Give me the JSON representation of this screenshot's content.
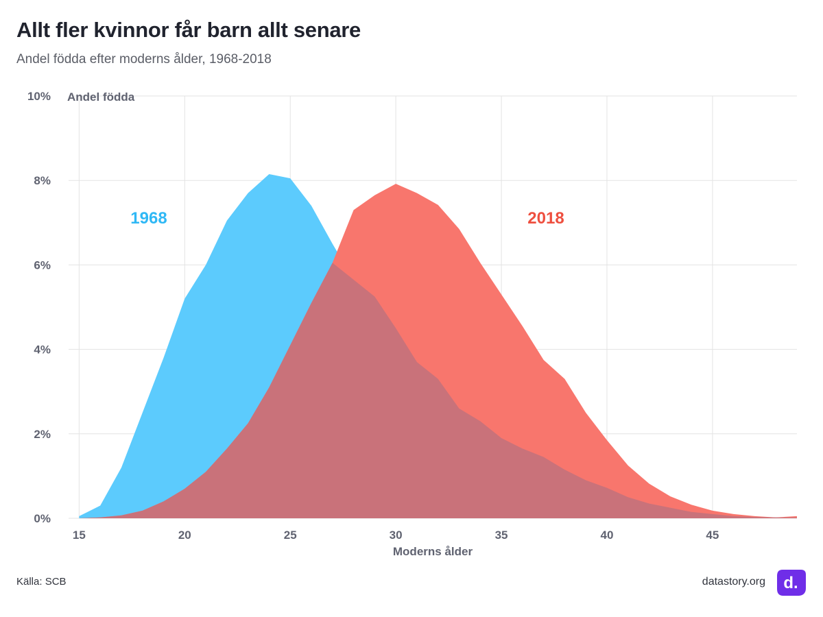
{
  "title": "Allt fler kvinnor får barn allt senare",
  "subtitle": "Andel födda efter moderns ålder, 1968-2018",
  "source": "Källa: SCB",
  "site": "datastory.org",
  "logo_text": "d.",
  "colors": {
    "series_1968": "#5ccbfd",
    "series_2018": "#f8766d",
    "overlap": "#c9727a",
    "logo": "#6f2ee8",
    "grid": "#e3e3e3"
  },
  "chart_data": {
    "type": "area",
    "title": "Allt fler kvinnor får barn allt senare",
    "subtitle": "Andel födda efter moderns ålder, 1968-2018",
    "xlabel": "Moderns ålder",
    "ylabel": "Andel födda",
    "xlim": [
      14.5,
      49
    ],
    "ylim": [
      0,
      10
    ],
    "x_ticks": [
      15,
      20,
      25,
      30,
      35,
      40,
      45
    ],
    "y_ticks": [
      "0%",
      "2%",
      "4%",
      "6%",
      "8%",
      "10%"
    ],
    "grid": true,
    "legend": "inline labels",
    "x": [
      15,
      16,
      17,
      18,
      19,
      20,
      21,
      22,
      23,
      24,
      25,
      26,
      27,
      28,
      29,
      30,
      31,
      32,
      33,
      34,
      35,
      36,
      37,
      38,
      39,
      40,
      41,
      42,
      43,
      44,
      45,
      46,
      47,
      48,
      49
    ],
    "series": [
      {
        "name": "1968",
        "values": [
          0.05,
          0.3,
          1.2,
          2.5,
          3.8,
          5.2,
          6.0,
          7.05,
          7.7,
          8.15,
          8.05,
          7.4,
          6.5,
          5.65,
          5.25,
          4.5,
          3.7,
          3.3,
          2.6,
          2.3,
          1.9,
          1.65,
          1.45,
          1.15,
          0.9,
          0.72,
          0.5,
          0.35,
          0.25,
          0.15,
          0.1,
          0.05,
          0.03,
          0.02,
          0.02
        ]
      },
      {
        "name": "2018",
        "values": [
          0.0,
          0.02,
          0.07,
          0.18,
          0.4,
          0.7,
          1.1,
          1.65,
          2.25,
          3.1,
          4.1,
          5.1,
          6.05,
          7.3,
          7.65,
          7.92,
          7.7,
          7.42,
          6.85,
          6.05,
          5.3,
          4.55,
          3.75,
          3.3,
          2.5,
          1.85,
          1.25,
          0.82,
          0.52,
          0.32,
          0.18,
          0.1,
          0.05,
          0.02,
          0.05
        ]
      }
    ],
    "labels": [
      "1968",
      "2018"
    ]
  }
}
